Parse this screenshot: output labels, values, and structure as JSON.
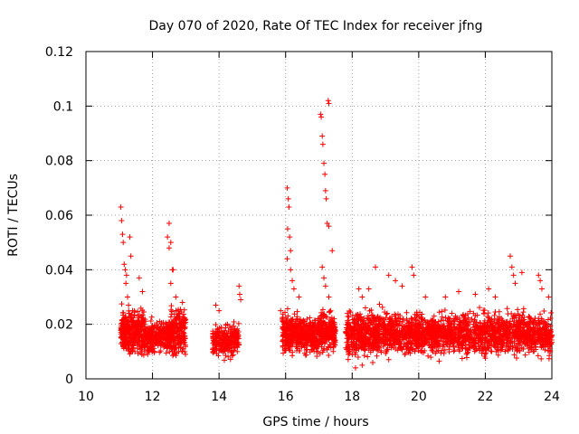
{
  "chart_data": {
    "type": "scatter",
    "title": "Day 070 of 2020, Rate Of TEC Index for receiver jfng",
    "xlabel": "GPS time / hours",
    "ylabel": "ROTI / TECUs",
    "xlim": [
      10,
      24
    ],
    "ylim": [
      0,
      0.12
    ],
    "xticks": [
      10,
      12,
      14,
      16,
      18,
      20,
      22,
      24
    ],
    "xtick_labels": [
      "10",
      "12",
      "14",
      "16",
      "18",
      "20",
      "22",
      "24"
    ],
    "yticks": [
      0,
      0.02,
      0.04,
      0.06,
      0.08,
      0.1,
      0.12
    ],
    "ytick_labels": [
      "0",
      "0.02",
      "0.04",
      "0.06",
      "0.08",
      "0.1",
      "0.12"
    ],
    "grid": true,
    "marker": "plus",
    "marker_color": "#ff0000",
    "series": [
      {
        "name": "ROTI",
        "points": [
          [
            11.05,
            0.063
          ],
          [
            11.07,
            0.058
          ],
          [
            11.1,
            0.053
          ],
          [
            11.12,
            0.05
          ],
          [
            11.15,
            0.042
          ],
          [
            11.18,
            0.04
          ],
          [
            11.2,
            0.035
          ],
          [
            11.22,
            0.038
          ],
          [
            11.25,
            0.03
          ],
          [
            11.28,
            0.027
          ],
          [
            11.32,
            0.052
          ],
          [
            11.35,
            0.045
          ],
          [
            11.4,
            0.025
          ],
          [
            11.6,
            0.037
          ],
          [
            11.7,
            0.032
          ],
          [
            12.5,
            0.057
          ],
          [
            12.45,
            0.052
          ],
          [
            12.5,
            0.048
          ],
          [
            12.55,
            0.05
          ],
          [
            12.6,
            0.04
          ],
          [
            12.62,
            0.04
          ],
          [
            12.55,
            0.035
          ],
          [
            12.7,
            0.03
          ],
          [
            12.9,
            0.028
          ],
          [
            13.9,
            0.027
          ],
          [
            14.0,
            0.025
          ],
          [
            14.6,
            0.034
          ],
          [
            14.62,
            0.031
          ],
          [
            14.65,
            0.029
          ],
          [
            15.85,
            0.025
          ],
          [
            16.05,
            0.07
          ],
          [
            16.08,
            0.066
          ],
          [
            16.1,
            0.063
          ],
          [
            16.06,
            0.055
          ],
          [
            16.12,
            0.052
          ],
          [
            16.15,
            0.047
          ],
          [
            16.05,
            0.044
          ],
          [
            16.15,
            0.04
          ],
          [
            16.2,
            0.036
          ],
          [
            16.25,
            0.033
          ],
          [
            16.4,
            0.03
          ],
          [
            17.05,
            0.097
          ],
          [
            17.07,
            0.096
          ],
          [
            17.1,
            0.089
          ],
          [
            17.12,
            0.086
          ],
          [
            17.15,
            0.079
          ],
          [
            17.18,
            0.075
          ],
          [
            17.2,
            0.069
          ],
          [
            17.22,
            0.066
          ],
          [
            17.25,
            0.057
          ],
          [
            17.3,
            0.056
          ],
          [
            17.28,
            0.102
          ],
          [
            17.3,
            0.101
          ],
          [
            17.4,
            0.047
          ],
          [
            17.1,
            0.041
          ],
          [
            17.15,
            0.037
          ],
          [
            17.2,
            0.034
          ],
          [
            17.3,
            0.03
          ],
          [
            18.2,
            0.033
          ],
          [
            18.3,
            0.03
          ],
          [
            18.5,
            0.033
          ],
          [
            18.7,
            0.041
          ],
          [
            19.1,
            0.038
          ],
          [
            19.3,
            0.036
          ],
          [
            19.5,
            0.034
          ],
          [
            19.8,
            0.041
          ],
          [
            19.85,
            0.038
          ],
          [
            20.2,
            0.03
          ],
          [
            20.8,
            0.03
          ],
          [
            21.2,
            0.032
          ],
          [
            21.7,
            0.031
          ],
          [
            22.1,
            0.033
          ],
          [
            22.3,
            0.03
          ],
          [
            22.75,
            0.045
          ],
          [
            22.8,
            0.041
          ],
          [
            22.85,
            0.038
          ],
          [
            22.9,
            0.035
          ],
          [
            23.1,
            0.039
          ],
          [
            23.6,
            0.038
          ],
          [
            23.65,
            0.036
          ],
          [
            23.7,
            0.033
          ],
          [
            23.9,
            0.03
          ],
          [
            18.1,
            0.004
          ],
          [
            18.3,
            0.005
          ]
        ],
        "clusters": [
          {
            "x_range": [
              11.05,
              11.75
            ],
            "y_range": [
              0.006,
              0.028
            ],
            "count": 340
          },
          {
            "x_range": [
              11.75,
              12.55
            ],
            "y_range": [
              0.007,
              0.024
            ],
            "count": 300
          },
          {
            "x_range": [
              12.55,
              13.0
            ],
            "y_range": [
              0.006,
              0.028
            ],
            "count": 200
          },
          {
            "x_range": [
              13.8,
              14.6
            ],
            "y_range": [
              0.006,
              0.022
            ],
            "count": 250
          },
          {
            "x_range": [
              15.9,
              16.4
            ],
            "y_range": [
              0.007,
              0.027
            ],
            "count": 220
          },
          {
            "x_range": [
              16.4,
              17.0
            ],
            "y_range": [
              0.007,
              0.025
            ],
            "count": 260
          },
          {
            "x_range": [
              17.0,
              17.5
            ],
            "y_range": [
              0.007,
              0.028
            ],
            "count": 230
          },
          {
            "x_range": [
              17.8,
              19.0
            ],
            "y_range": [
              0.005,
              0.028
            ],
            "count": 480
          },
          {
            "x_range": [
              19.0,
              24.0
            ],
            "y_range": [
              0.006,
              0.027
            ],
            "count": 1700
          }
        ]
      }
    ]
  }
}
